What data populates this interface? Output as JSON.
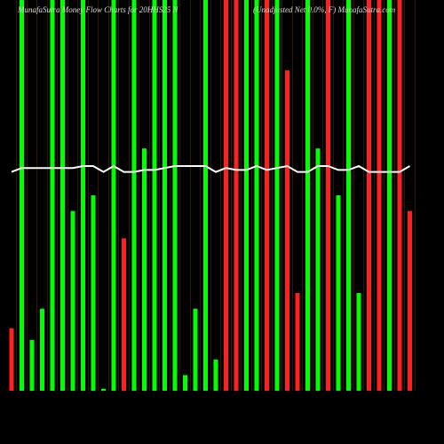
{
  "chart_data": {
    "type": "bar",
    "title": "MunafaSutra Money Flow Charts for 20HHS25 N",
    "subtitle": "(Unadjusted Net 0.0%, F) MunafaSutra.com",
    "ylim": [
      0,
      100
    ],
    "values": [
      16,
      100,
      13,
      21,
      100,
      100,
      46,
      100,
      50,
      0.5,
      100,
      39,
      100,
      62,
      100,
      100,
      100,
      4,
      21,
      100,
      8,
      100,
      100,
      100,
      100,
      100,
      100,
      82,
      25,
      100,
      62,
      100,
      50,
      100,
      25,
      100,
      100,
      100,
      100,
      46
    ],
    "colors": [
      "#ff2020",
      "#00ff00",
      "#00ff00",
      "#00ff00",
      "#00ff00",
      "#00ff00",
      "#00ff00",
      "#00ff00",
      "#00ff00",
      "#00ff00",
      "#00ff00",
      "#ff2020",
      "#00ff00",
      "#00ff00",
      "#00ff00",
      "#00ff00",
      "#00ff00",
      "#00ff00",
      "#00ff00",
      "#00ff00",
      "#00ff00",
      "#ff2020",
      "#ff2020",
      "#00ff00",
      "#00ff00",
      "#ff2020",
      "#00ff00",
      "#ff2020",
      "#ff2020",
      "#00ff00",
      "#00ff00",
      "#ff2020",
      "#00ff00",
      "#00ff00",
      "#00ff00",
      "#ff2020",
      "#ff2020",
      "#00ff00",
      "#ff2020",
      "#ff2020"
    ],
    "line": {
      "color": "#ffffff",
      "values": [
        56,
        57,
        57,
        57,
        57,
        57,
        57,
        57.5,
        57.5,
        56,
        57.5,
        56,
        56,
        56.5,
        56.5,
        57,
        57.5,
        57.5,
        57.5,
        57.5,
        56,
        57,
        56.5,
        56.5,
        57.5,
        56.5,
        57,
        57.5,
        56,
        56,
        57.5,
        57.5,
        56.5,
        56.5,
        57.5,
        56,
        56,
        56,
        56,
        57.5
      ]
    }
  }
}
